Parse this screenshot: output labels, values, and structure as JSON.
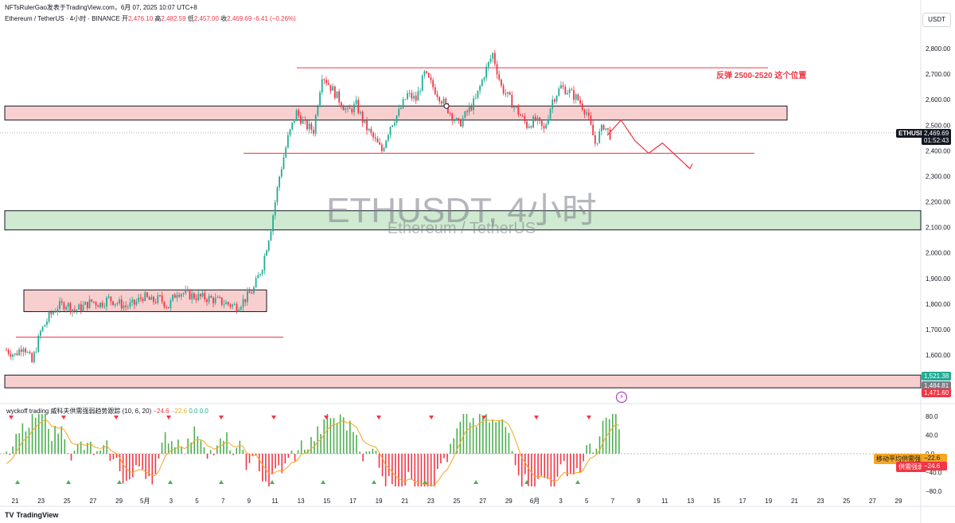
{
  "header": {
    "publisher": "NFTsRulerGao发表于TradingView.com，6月 07, 2025 10:07 UTC+8"
  },
  "ohlc": {
    "symbol_line": "Ethereum / TetherUS · 4小时 · BINANCE",
    "open_label": "开",
    "open": "2,476.10",
    "high_label": "高",
    "high": "2,482.59",
    "low_label": "低",
    "low": "2,457.00",
    "close_label": "收",
    "close": "2,469.69",
    "change": "-6.41 (−0.26%)"
  },
  "currency": "USDT",
  "watermark": {
    "title": "ETHUSDT, 4小时",
    "subtitle": "Ethereum / TetherUS"
  },
  "annotation": "反弹 2500-2520 这个位置",
  "price_axis": [
    "2,800.00",
    "2,700.00",
    "2,600.00",
    "2,500.00",
    "2,400.00",
    "2,300.00",
    "2,200.00",
    "2,100.00",
    "2,000.00",
    "1,900.00",
    "1,800.00",
    "1,700.00",
    "1,600.00"
  ],
  "price_tags": {
    "symbol": "ETHUSDT",
    "current": "2,469.69",
    "timer": "01:52:43",
    "level_green": "1,521.38",
    "level_gray": "1,484.81",
    "level_red": "1,471.60"
  },
  "indicator": {
    "title": "wyckoff trading 威科夫供需强弱趋势跟踪 (10, 6, 20)",
    "v1": "−24.6",
    "v2": "−22.6",
    "v3": "0.0",
    "v4": "0.0",
    "axis": [
      "80.0",
      "40.0",
      "0.0",
      "−40.0",
      "−80.0"
    ],
    "tag1_label": "移动平均供需强弱",
    "tag1_value": "−22.6",
    "tag2_label": "供需强弱",
    "tag2_value": "−24.6"
  },
  "time_axis": [
    "21",
    "23",
    "25",
    "27",
    "29",
    "5月",
    "3",
    "5",
    "7",
    "9",
    "11",
    "13",
    "15",
    "17",
    "19",
    "21",
    "23",
    "25",
    "27",
    "29",
    "6月",
    "3",
    "5",
    "7",
    "9",
    "11",
    "13",
    "15",
    "17",
    "19",
    "21",
    "23",
    "25",
    "27",
    "29"
  ],
  "footer": {
    "logo": "TV",
    "brand": "TradingView"
  },
  "colors": {
    "up": "#22ab94",
    "down": "#f23645",
    "zone_red": "#f8cfcf",
    "zone_green": "#cfead0"
  },
  "chart_data": {
    "type": "candlestick",
    "title": "ETHUSDT, 4小时",
    "ylabel": "USDT",
    "ylim": [
      1420,
      2880
    ],
    "resistance_zone": [
      2520,
      2575
    ],
    "support_zone": [
      2090,
      2165
    ],
    "range_box": [
      1770,
      1855
    ],
    "bottom_zone": [
      1471.6,
      1521.38
    ],
    "lines": [
      2725,
      2390,
      1670
    ],
    "price_path": [
      1620,
      1600,
      1640,
      1570,
      1690,
      1750,
      1790,
      1800,
      1775,
      1790,
      1810,
      1800,
      1820,
      1805,
      1790,
      1800,
      1830,
      1810,
      1820,
      1790,
      1850,
      1840,
      1830,
      1825,
      1820,
      1810,
      1800,
      1790,
      1820,
      1860,
      1950,
      2100,
      2300,
      2450,
      2550,
      2500,
      2480,
      2700,
      2650,
      2600,
      2550,
      2580,
      2500,
      2450,
      2400,
      2500,
      2550,
      2620,
      2600,
      2700,
      2650,
      2600,
      2550,
      2500,
      2550,
      2600,
      2700,
      2780,
      2650,
      2600,
      2550,
      2500,
      2520,
      2480,
      2600,
      2650,
      2630,
      2600,
      2550,
      2430,
      2500,
      2450
    ],
    "projection": [
      2460,
      2520,
      2440,
      2390,
      2430,
      2380,
      2330
    ]
  }
}
